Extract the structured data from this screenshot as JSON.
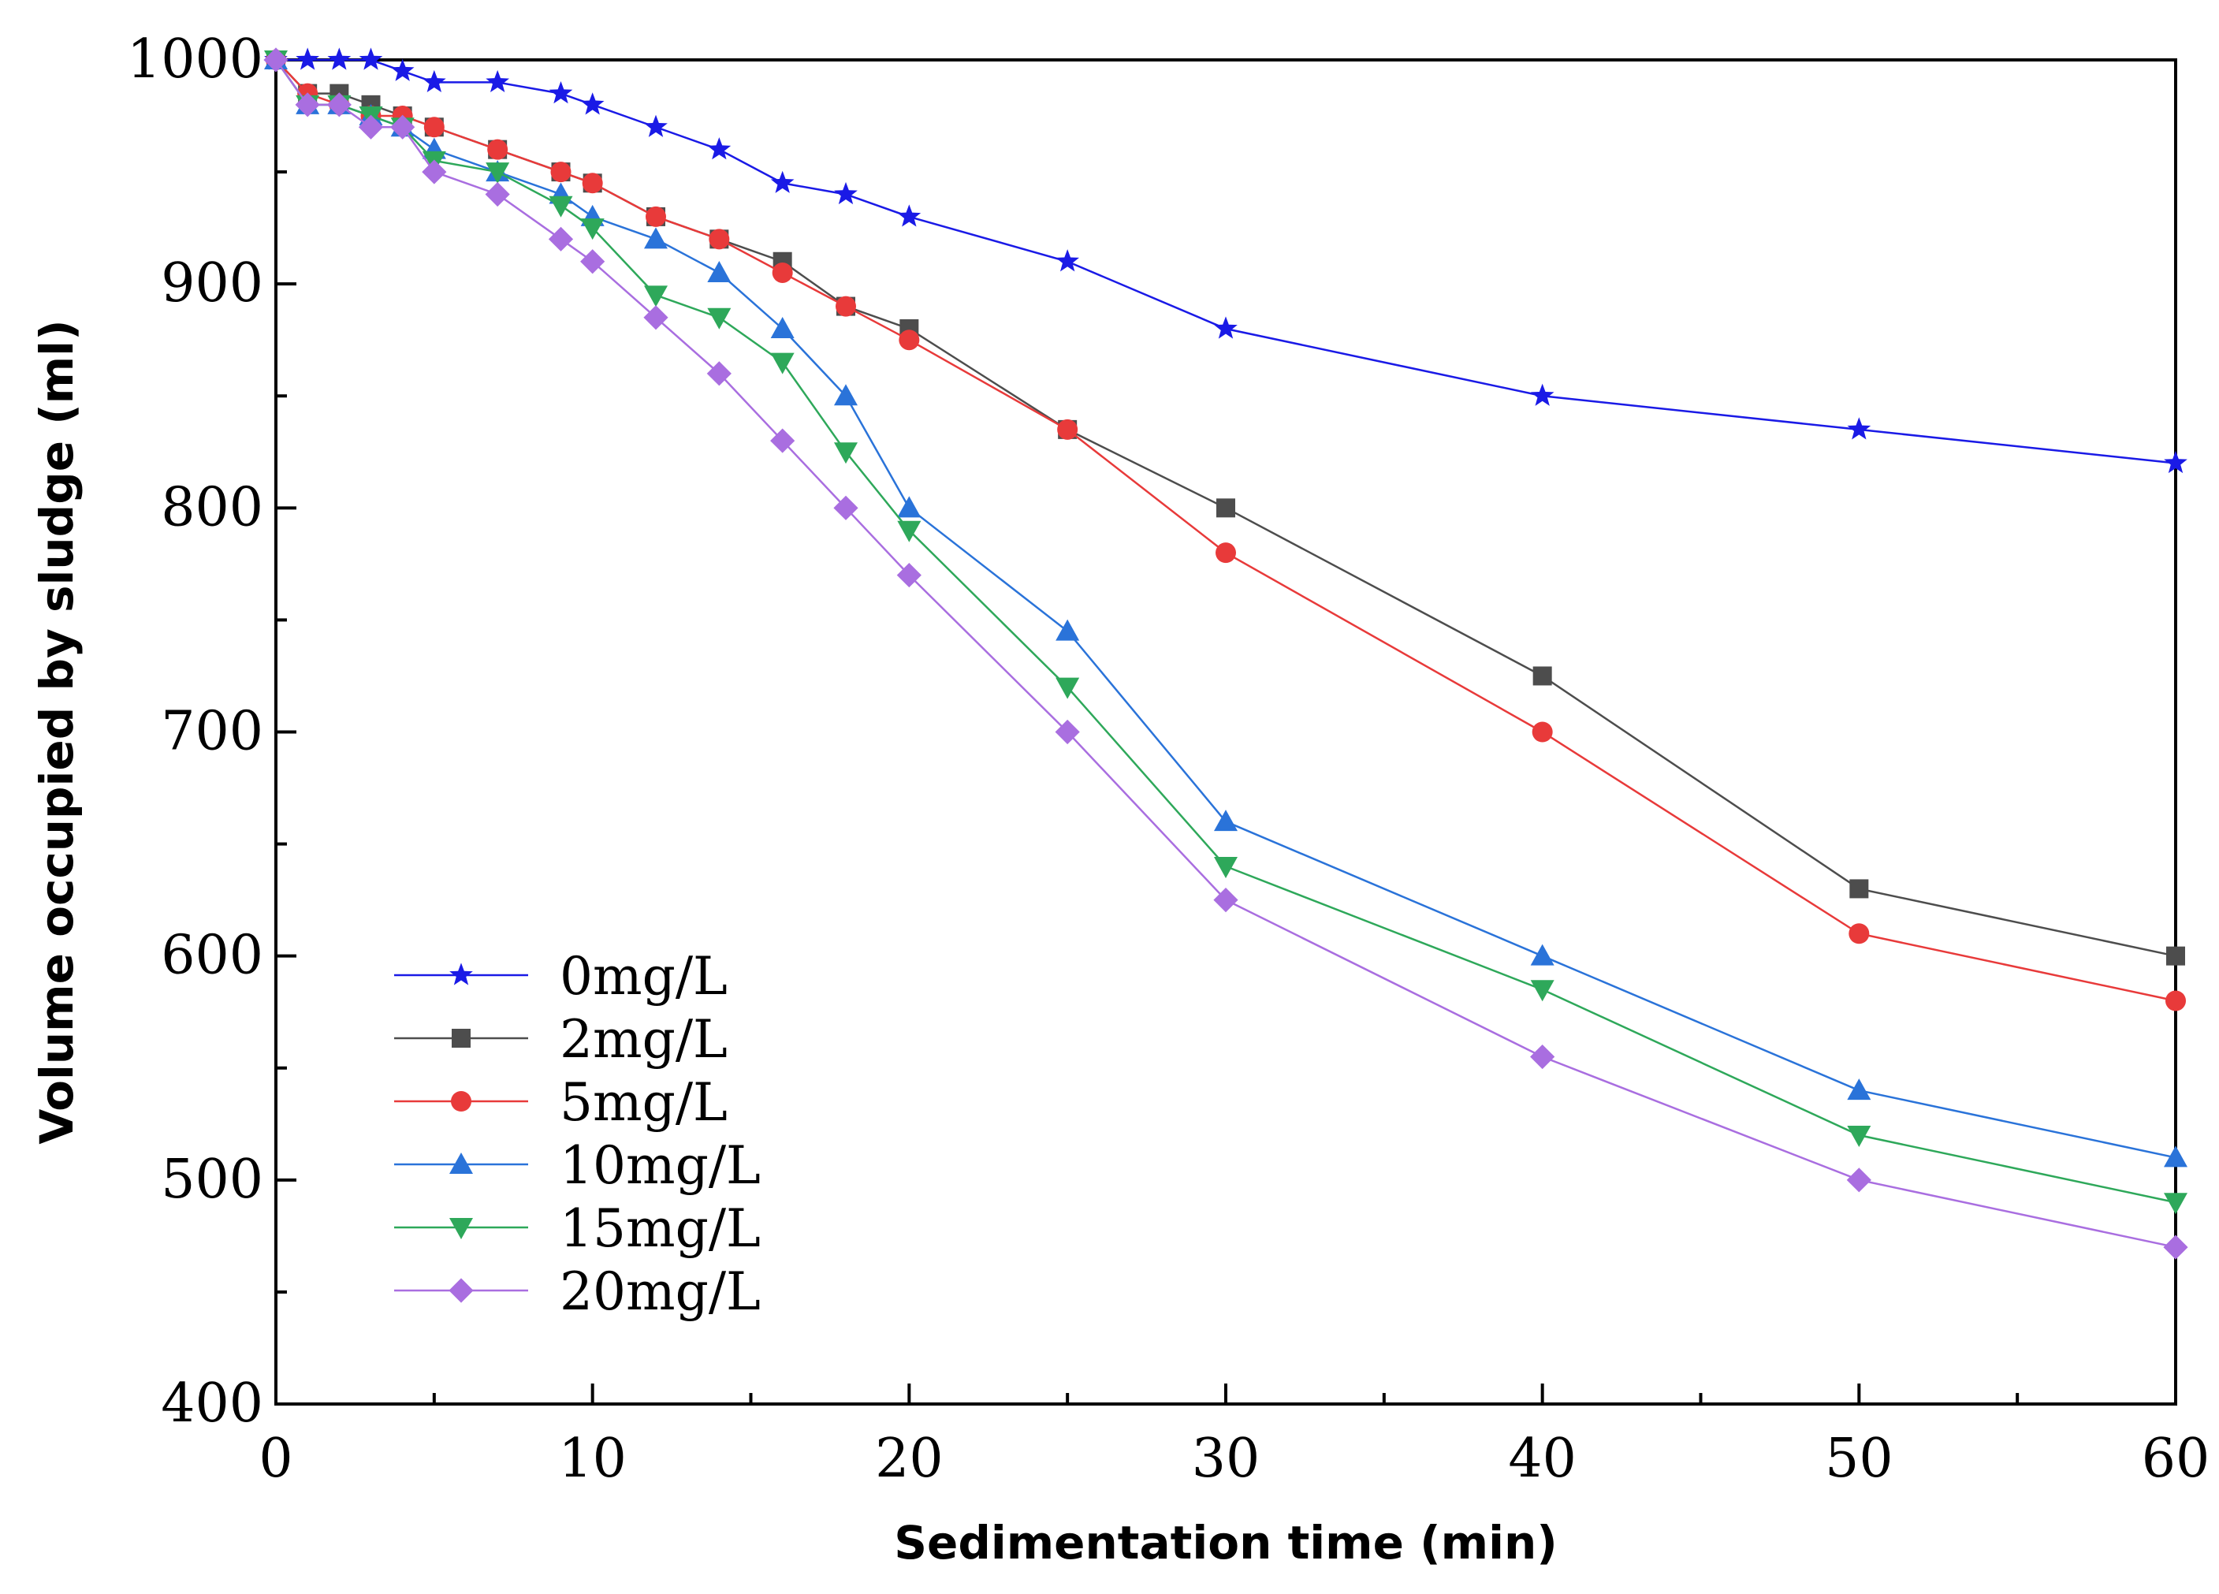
{
  "chart_data": {
    "type": "line",
    "title": "",
    "xlabel": "Sedimentation time (min)",
    "ylabel": "Volume occupied by sludge (ml)",
    "xlim": [
      0,
      60
    ],
    "ylim": [
      400,
      1000
    ],
    "xticks": [
      0,
      10,
      20,
      30,
      40,
      50,
      60
    ],
    "yticks": [
      400,
      500,
      600,
      700,
      800,
      900,
      1000
    ],
    "x_minor_step": 5,
    "y_minor_step": 50,
    "grid": false,
    "legend_position": "lower-left",
    "x": [
      0,
      1,
      2,
      3,
      4,
      5,
      7,
      9,
      10,
      12,
      14,
      16,
      18,
      20,
      25,
      30,
      40,
      50,
      60
    ],
    "series": [
      {
        "name": "0mg/L",
        "color": "#1a1ae6",
        "marker": "star",
        "values": [
          1000,
          1000,
          1000,
          1000,
          995,
          990,
          990,
          985,
          980,
          970,
          960,
          945,
          940,
          930,
          910,
          880,
          850,
          835,
          820
        ]
      },
      {
        "name": "2mg/L",
        "color": "#4d4d4d",
        "marker": "square",
        "values": [
          1000,
          985,
          985,
          980,
          975,
          970,
          960,
          950,
          945,
          930,
          920,
          910,
          890,
          880,
          835,
          800,
          725,
          630,
          600
        ]
      },
      {
        "name": "5mg/L",
        "color": "#e83a3a",
        "marker": "circle",
        "values": [
          1000,
          985,
          980,
          975,
          975,
          970,
          960,
          950,
          945,
          930,
          920,
          905,
          890,
          875,
          835,
          780,
          700,
          610,
          580
        ]
      },
      {
        "name": "10mg/L",
        "color": "#2a73d9",
        "marker": "triangle-up",
        "values": [
          1000,
          980,
          980,
          975,
          970,
          960,
          950,
          940,
          930,
          920,
          905,
          880,
          850,
          800,
          745,
          660,
          600,
          540,
          510
        ]
      },
      {
        "name": "15mg/L",
        "color": "#2ea85a",
        "marker": "triangle-down",
        "values": [
          1000,
          980,
          980,
          975,
          970,
          955,
          950,
          935,
          925,
          895,
          885,
          865,
          825,
          790,
          720,
          640,
          585,
          520,
          490
        ]
      },
      {
        "name": "20mg/L",
        "color": "#a96ee0",
        "marker": "diamond",
        "values": [
          1000,
          980,
          980,
          970,
          970,
          950,
          940,
          920,
          910,
          885,
          860,
          830,
          800,
          770,
          700,
          625,
          555,
          500,
          470
        ]
      }
    ]
  }
}
